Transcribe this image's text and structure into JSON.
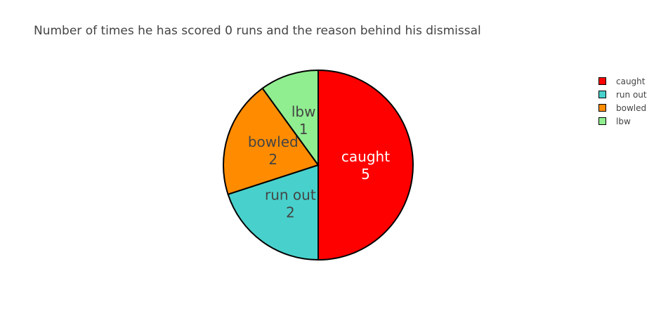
{
  "chart_data": {
    "type": "pie",
    "title": "Number of times he has scored 0 runs and the reason behind his dismissal",
    "legend_position": "top-right",
    "slices": [
      {
        "label": "caught",
        "value": 5,
        "color": "#ff0000",
        "text_color": "#ffffff"
      },
      {
        "label": "run out",
        "value": 2,
        "color": "#48d1cc",
        "text_color": "#444444"
      },
      {
        "label": "bowled",
        "value": 2,
        "color": "#ff8c00",
        "text_color": "#444444"
      },
      {
        "label": "lbw",
        "value": 1,
        "color": "#90ee90",
        "text_color": "#444444"
      }
    ],
    "slice_value_text": [
      "5",
      "2",
      "2",
      "1"
    ],
    "direction": "clockwise",
    "start_angle": "top"
  }
}
